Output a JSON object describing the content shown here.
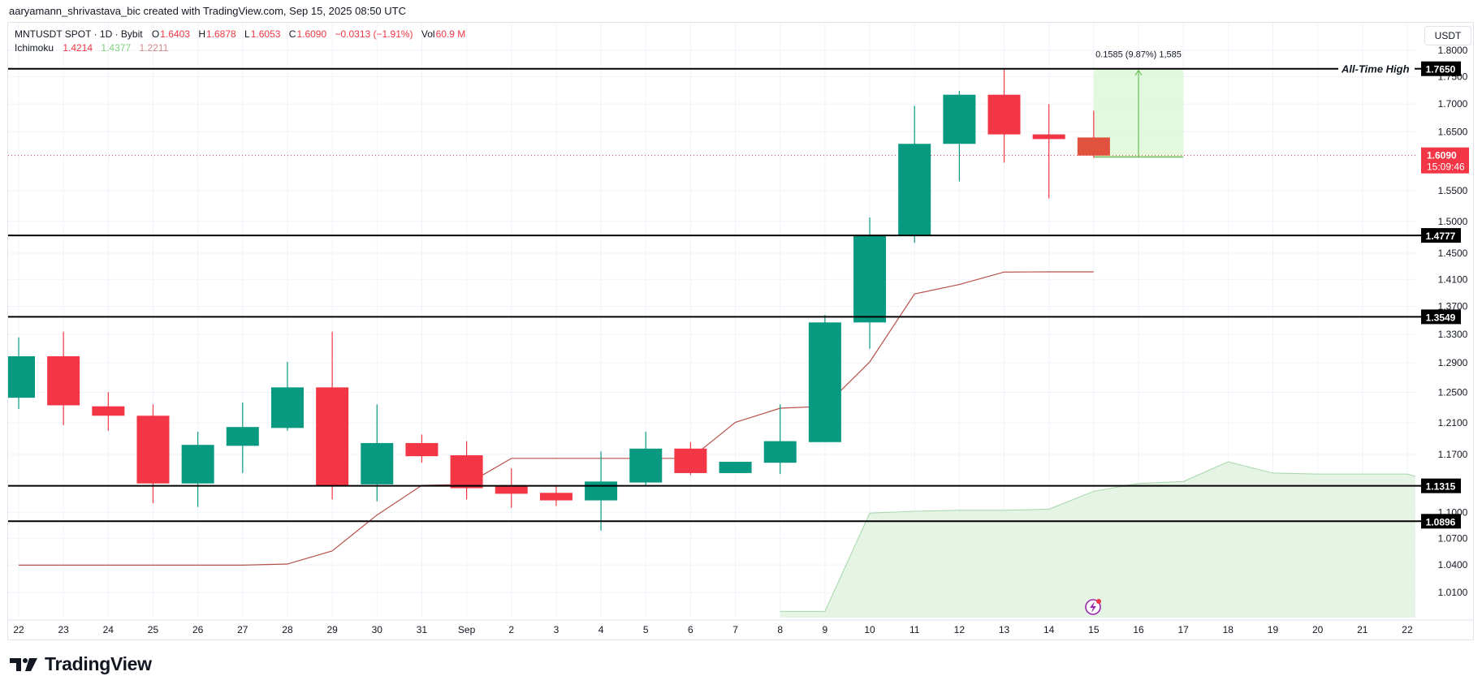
{
  "credit": "aaryamann_shrivastava_bic created with TradingView.com, Sep 15, 2025 08:50 UTC",
  "legend": {
    "symbol": "MNTUSDT SPOT · 1D · Bybit",
    "open_label": "O",
    "open": "1.6403",
    "high_label": "H",
    "high": "1.6878",
    "low_label": "L",
    "low": "1.6053",
    "close_label": "C",
    "close": "1.6090",
    "change": "−0.0313 (−1.91%)",
    "vol_label": "Vol",
    "vol": "60.9 M",
    "indicator": "Ichimoku",
    "ind_values": [
      "1.4214",
      "1.4377",
      "1.2211"
    ]
  },
  "currency": "USDT",
  "brand": "TradingView",
  "colors": {
    "up": "#089981",
    "down": "#f23645",
    "cloud": "#e6f4e6",
    "cloud_edge": "#a5d6a7",
    "base_line": "#b7504a",
    "measure_fill": "#dcf8d4",
    "measure_line": "#6cc05c",
    "level": "#000000"
  },
  "chart_data": {
    "type": "candlestick",
    "scale": "log",
    "grid": true,
    "ylim": [
      0.98,
      1.83
    ],
    "y_ticks": [
      "1.8000",
      "1.7500",
      "1.7000",
      "1.6500",
      "1.5500",
      "1.5000",
      "1.4500",
      "1.4100",
      "1.3700",
      "1.3300",
      "1.2900",
      "1.2500",
      "1.2100",
      "1.1700",
      "1.1000",
      "1.0700",
      "1.0400",
      "1.0100"
    ],
    "x_labels": [
      "22",
      "23",
      "24",
      "25",
      "26",
      "27",
      "28",
      "29",
      "30",
      "31",
      "Sep",
      "2",
      "3",
      "4",
      "5",
      "6",
      "7",
      "8",
      "9",
      "10",
      "11",
      "12",
      "13",
      "14",
      "15",
      "16",
      "17",
      "18",
      "19",
      "20",
      "21",
      "22"
    ],
    "candles": [
      {
        "date": "Aug 22",
        "o": 1.2429,
        "h": 1.3255,
        "l": 1.2279,
        "c": 1.2991
      },
      {
        "date": "Aug 23",
        "o": 1.2991,
        "h": 1.3335,
        "l": 1.2072,
        "c": 1.2329
      },
      {
        "date": "Aug 24",
        "o": 1.2316,
        "h": 1.2504,
        "l": 1.1999,
        "c": 1.2193
      },
      {
        "date": "Aug 25",
        "o": 1.2193,
        "h": 1.2341,
        "l": 1.1107,
        "c": 1.1344
      },
      {
        "date": "Aug 26",
        "o": 1.1344,
        "h": 1.1987,
        "l": 1.1063,
        "c": 1.182
      },
      {
        "date": "Aug 27",
        "o": 1.1808,
        "h": 1.2366,
        "l": 1.147,
        "c": 1.2047
      },
      {
        "date": "Aug 28",
        "o": 1.2035,
        "h": 1.2913,
        "l": 1.1999,
        "c": 1.2567
      },
      {
        "date": "Aug 29",
        "o": 1.2567,
        "h": 1.3335,
        "l": 1.1152,
        "c": 1.131
      },
      {
        "date": "Aug 30",
        "o": 1.1333,
        "h": 1.2341,
        "l": 1.113,
        "c": 1.1843
      },
      {
        "date": "Aug 31",
        "o": 1.1843,
        "h": 1.1951,
        "l": 1.1597,
        "c": 1.1678
      },
      {
        "date": "Sep 1",
        "o": 1.169,
        "h": 1.1867,
        "l": 1.1152,
        "c": 1.1287
      },
      {
        "date": "Sep 2",
        "o": 1.131,
        "h": 1.1528,
        "l": 1.1052,
        "c": 1.122
      },
      {
        "date": "Sep 3",
        "o": 1.1231,
        "h": 1.1321,
        "l": 1.1074,
        "c": 1.1141
      },
      {
        "date": "Sep 4",
        "o": 1.1141,
        "h": 1.1737,
        "l": 1.0788,
        "c": 1.1367
      },
      {
        "date": "Sep 5",
        "o": 1.1355,
        "h": 1.1987,
        "l": 1.1321,
        "c": 1.1773
      },
      {
        "date": "Sep 6",
        "o": 1.1773,
        "h": 1.1855,
        "l": 1.1447,
        "c": 1.147
      },
      {
        "date": "Sep 7",
        "o": 1.147,
        "h": 1.1609,
        "l": 1.147,
        "c": 1.1609
      },
      {
        "date": "Sep 8",
        "o": 1.1597,
        "h": 1.2341,
        "l": 1.1458,
        "c": 1.1867
      },
      {
        "date": "Sep 9",
        "o": 1.1855,
        "h": 1.3576,
        "l": 1.1855,
        "c": 1.3468
      },
      {
        "date": "Sep 10",
        "o": 1.3468,
        "h": 1.5064,
        "l": 1.3096,
        "c": 1.4779
      },
      {
        "date": "Sep 11",
        "o": 1.4779,
        "h": 1.6962,
        "l": 1.466,
        "c": 1.6292
      },
      {
        "date": "Sep 12",
        "o": 1.6292,
        "h": 1.7238,
        "l": 1.5651,
        "c": 1.7168
      },
      {
        "date": "Sep 13",
        "o": 1.7168,
        "h": 1.765,
        "l": 1.5969,
        "c": 1.6457
      },
      {
        "date": "Sep 14",
        "o": 1.6457,
        "h": 1.6996,
        "l": 1.537,
        "c": 1.6375
      },
      {
        "date": "Sep 15",
        "o": 1.6403,
        "h": 1.6878,
        "l": 1.6053,
        "c": 1.609
      }
    ],
    "base_line": [
      1.0398,
      1.0398,
      1.0398,
      1.0398,
      1.0398,
      1.0398,
      1.041,
      1.0557,
      1.0969,
      1.1321,
      1.1333,
      1.1651,
      1.1651,
      1.1651,
      1.1651,
      1.1651,
      1.2107,
      1.2291,
      1.2316,
      1.2913,
      1.3883,
      1.4024,
      1.4211,
      1.4214,
      1.4214
    ],
    "cloud_top": [
      null,
      null,
      null,
      null,
      null,
      null,
      null,
      null,
      null,
      null,
      null,
      null,
      null,
      null,
      null,
      null,
      null,
      0.9898,
      0.9898,
      1.0991,
      1.1013,
      1.1024,
      1.1024,
      1.1036,
      1.1249,
      1.1344,
      1.1367,
      1.1609,
      1.147,
      1.1458,
      1.1458,
      1.1458
    ],
    "levels": [
      {
        "value": "1.7650",
        "label": "All-Time High"
      },
      {
        "value": "1.4777"
      },
      {
        "value": "1.3549"
      },
      {
        "value": "1.1315"
      },
      {
        "value": "1.0896"
      }
    ],
    "last_price": {
      "value": "1.6090",
      "countdown": "15:09:46"
    },
    "measure": {
      "from_date_index": 24,
      "to_date_index": 26,
      "from": 1.6065,
      "to": 1.765,
      "label": "0.1585 (9.87%) 1,585"
    }
  }
}
